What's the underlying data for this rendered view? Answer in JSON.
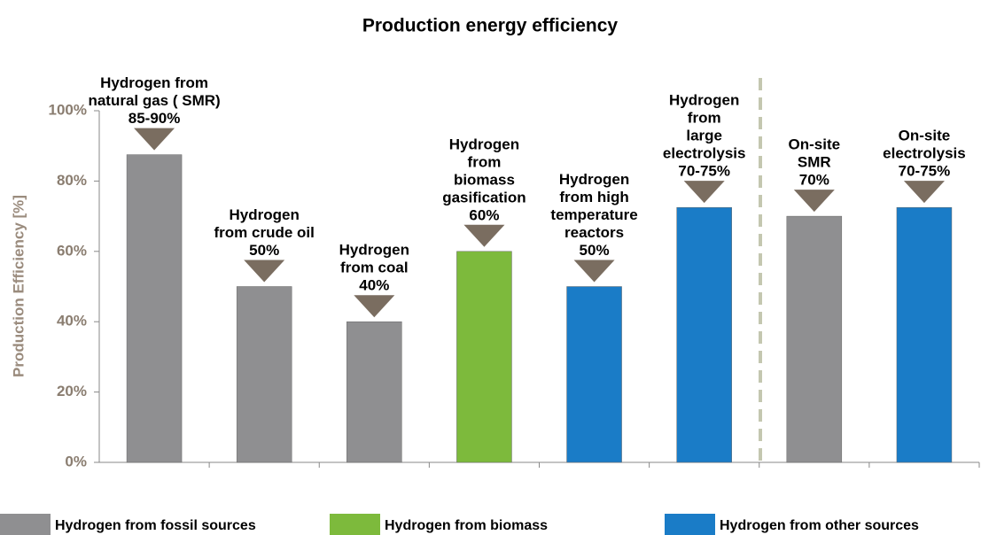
{
  "chart_data": {
    "type": "bar",
    "title": "Production energy efficiency",
    "y_label": "Production Efficiency [%]",
    "categories": [
      [
        "Hydrogen from",
        "natural gas ( SMR)"
      ],
      [
        "Hydrogen",
        "from crude oil"
      ],
      [
        "Hydrogen",
        "from coal"
      ],
      [
        "Hydrogen",
        "from",
        "biomass",
        "gasification"
      ],
      [
        "Hydrogen",
        "from high",
        "temperature",
        "reactors"
      ],
      [
        "Hydrogen",
        "from",
        "large",
        "electrolysis"
      ],
      [
        "On-site",
        "SMR"
      ],
      [
        "On-site",
        "electrolysis"
      ]
    ],
    "values": [
      87.5,
      50,
      40,
      60,
      50,
      72.5,
      70,
      72.5
    ],
    "value_labels": [
      "85-90%",
      "50%",
      "40%",
      "60%",
      "50%",
      "70-75%",
      "70%",
      "70-75%"
    ],
    "colors": [
      "#8f8f91",
      "#8f8f91",
      "#8f8f91",
      "#7dba3c",
      "#1a7cc7",
      "#1a7cc7",
      "#8f8f91",
      "#1a7cc7"
    ],
    "legend": [
      {
        "name": "Hydrogen from fossil sources",
        "color": "#8f8f91"
      },
      {
        "name": "Hydrogen from biomass",
        "color": "#7dba3c"
      },
      {
        "name": "Hydrogen from other sources",
        "color": "#1a7cc7"
      }
    ],
    "ylim": [
      0,
      100
    ],
    "yticks": [
      {
        "value": 0,
        "label": "0%"
      },
      {
        "value": 20,
        "label": "20%"
      },
      {
        "value": 40,
        "label": "40%"
      },
      {
        "value": 60,
        "label": "60%"
      },
      {
        "value": 80,
        "label": "80%"
      },
      {
        "value": 100,
        "label": "100%"
      }
    ]
  }
}
